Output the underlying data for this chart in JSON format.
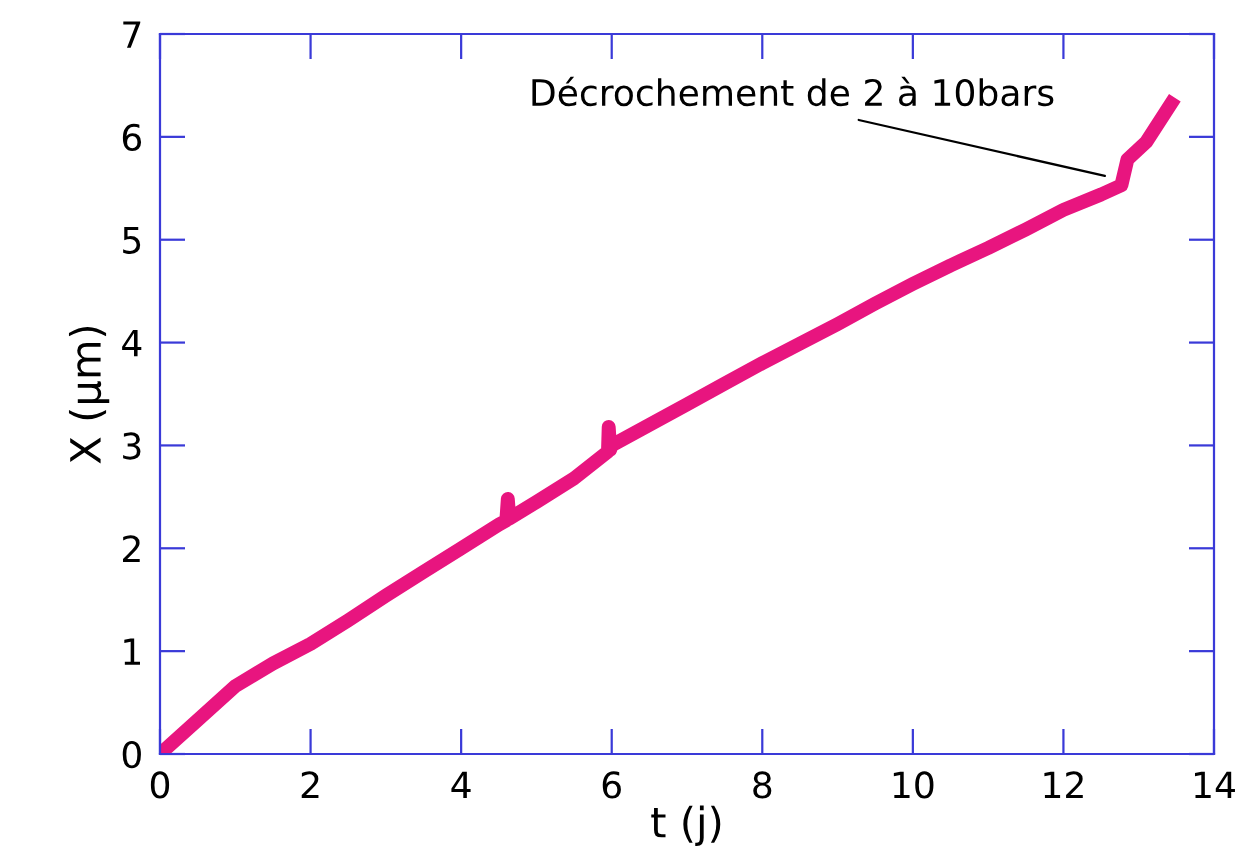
{
  "chart_data": {
    "type": "line",
    "xlabel": "t (j)",
    "ylabel": "X (µm)",
    "xlim": [
      0,
      14
    ],
    "ylim": [
      0,
      7
    ],
    "xticks": [
      0,
      2,
      4,
      6,
      8,
      10,
      12,
      14
    ],
    "yticks": [
      0,
      1,
      2,
      3,
      4,
      5,
      6,
      7
    ],
    "grid": false,
    "legend": false,
    "marker": "none",
    "line_style": "solid",
    "annotations": [
      {
        "text": "Décrochement de 2 à 10bars",
        "x": 12.55,
        "y": 5.62
      }
    ],
    "series": [
      {
        "color": "#e8157f",
        "x": [
          0,
          0.5,
          1,
          1.5,
          2,
          2.5,
          3,
          3.5,
          4,
          4.5,
          4.6,
          4.62,
          4.64,
          5,
          5.5,
          5.95,
          5.96,
          5.98,
          6,
          6.5,
          7,
          7.5,
          8,
          8.5,
          9,
          9.5,
          10,
          10.5,
          11,
          11.5,
          12,
          12.5,
          12.77,
          12.85,
          13.1,
          13.48
        ],
        "values": [
          0,
          0.33,
          0.66,
          0.88,
          1.07,
          1.3,
          1.54,
          1.77,
          2.0,
          2.23,
          2.27,
          2.48,
          2.29,
          2.45,
          2.68,
          2.94,
          3.18,
          2.96,
          3.0,
          3.2,
          3.4,
          3.6,
          3.8,
          3.99,
          4.18,
          4.38,
          4.57,
          4.75,
          4.92,
          5.1,
          5.29,
          5.44,
          5.53,
          5.78,
          5.95,
          6.38
        ]
      }
    ]
  }
}
